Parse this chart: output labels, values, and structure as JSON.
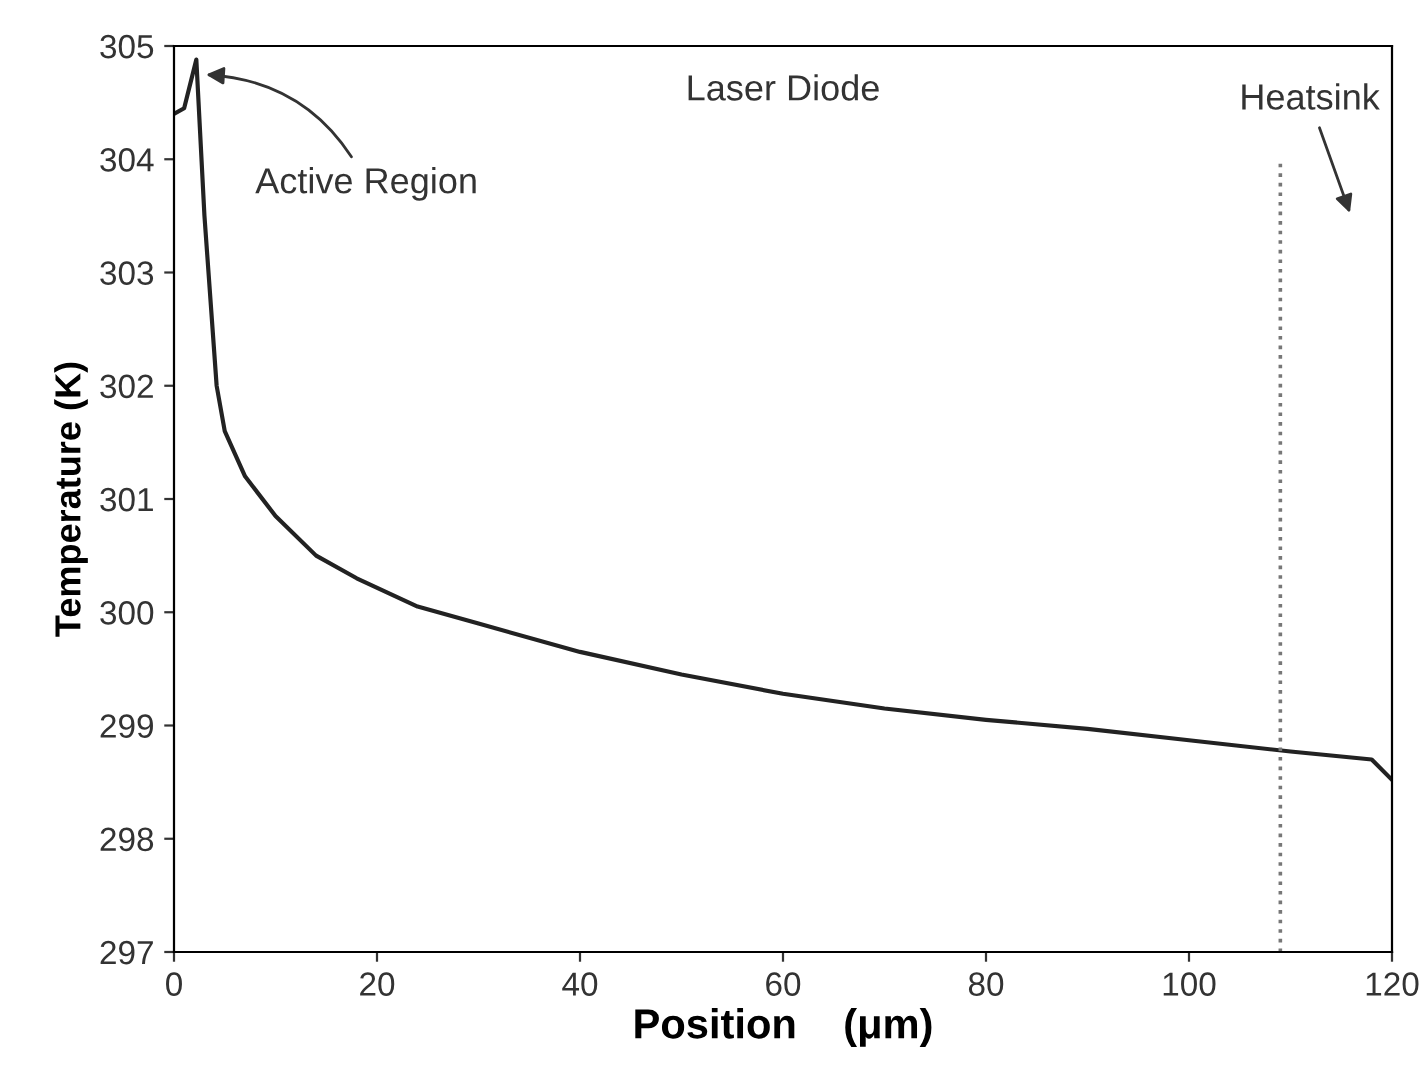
{
  "chart_data": {
    "type": "line",
    "xlabel": "Position    (μm)",
    "ylabel": "Temperature (K)",
    "x": [
      0,
      1,
      2.2,
      3,
      4.2,
      5,
      7,
      10,
      14,
      18,
      24,
      30,
      40,
      50,
      60,
      70,
      80,
      90,
      100,
      110,
      118,
      120
    ],
    "series": [
      {
        "color": "#222222",
        "values": [
          304.4,
          304.45,
          304.88,
          303.5,
          302.0,
          301.6,
          301.2,
          300.85,
          300.5,
          300.3,
          300.05,
          299.9,
          299.65,
          299.45,
          299.28,
          299.15,
          299.05,
          298.97,
          298.87,
          298.77,
          298.7,
          298.52
        ]
      }
    ],
    "xlim": [
      0,
      120
    ],
    "xticks": [
      0,
      20,
      40,
      60,
      80,
      100,
      120
    ],
    "ylim": [
      297,
      305
    ],
    "yticks": [
      297,
      298,
      299,
      300,
      301,
      302,
      303,
      304,
      305
    ],
    "ref_lines": [
      {
        "axis": "x",
        "value": 109,
        "color": "#777777",
        "line_style": "dotted"
      }
    ],
    "annotations": [
      {
        "text": "Active Region",
        "x": 2.6,
        "y": 304.75
      },
      "Laser Diode",
      "Heatsink"
    ],
    "grid": false,
    "legend": false,
    "marker": "none",
    "line_style": "solid"
  }
}
